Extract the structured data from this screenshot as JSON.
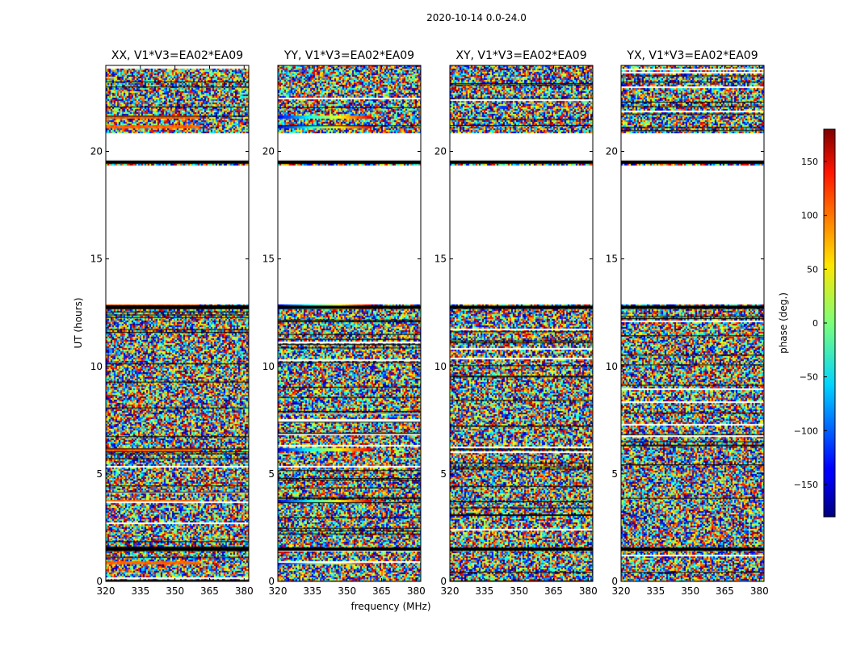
{
  "chart_data": {
    "type": "heatmap",
    "title": "2020-10-14 0.0-24.0",
    "xlabel": "frequency (MHz)",
    "ylabel": "UT (hours)",
    "xlim": [
      320,
      382
    ],
    "ylim": [
      0,
      24
    ],
    "x_ticks": [
      "320",
      "335",
      "350",
      "365",
      "380"
    ],
    "x_tick_values": [
      320,
      335,
      350,
      365,
      380
    ],
    "y_ticks": [
      "0",
      "5",
      "10",
      "15",
      "20"
    ],
    "y_tick_values": [
      0,
      5,
      10,
      15,
      20
    ],
    "panels": [
      {
        "name": "XX",
        "title": "XX, V1*V3=EA02*EA09"
      },
      {
        "name": "YY",
        "title": "YY, V1*V3=EA02*EA09"
      },
      {
        "name": "XY",
        "title": "XY, V1*V3=EA02*EA09"
      },
      {
        "name": "YX",
        "title": "YX, V1*V3=EA02*EA09"
      }
    ],
    "colorbar": {
      "label": "phase (deg.)",
      "range": [
        -180,
        180
      ],
      "ticks": [
        "150",
        "100",
        "50",
        "0",
        "−50",
        "−100",
        "−150"
      ],
      "tick_values": [
        150,
        100,
        50,
        0,
        -50,
        -100,
        -150
      ]
    },
    "blank_hours": [
      [
        12.9,
        19.4
      ],
      [
        19.6,
        20.9
      ]
    ],
    "solid_line_hours": [
      19.5,
      1.5,
      12.75
    ],
    "coherent_bands_hours": [
      0.9,
      3.75,
      6.15,
      12.8,
      21.2,
      21.65
    ]
  }
}
